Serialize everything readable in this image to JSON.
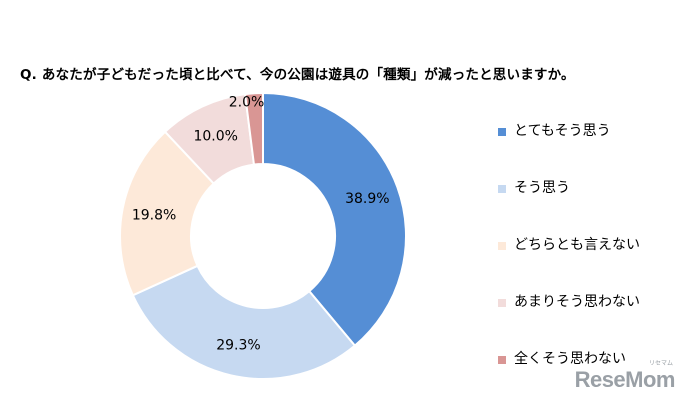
{
  "question": "Q. あなたが子どもだった頃と比べて、今の公園は遊具の「種類」が減ったと思いますか。",
  "chart_data": {
    "type": "pie",
    "variant": "donut",
    "categories": [
      "とてもそう思う",
      "そう思う",
      "どちらとも言えない",
      "あまりそう思わない",
      "全くそう思わない"
    ],
    "values": [
      38.9,
      29.3,
      19.8,
      10.0,
      2.0
    ],
    "value_labels": [
      "38.9%",
      "29.3%",
      "19.8%",
      "10.0%",
      "2.0%"
    ],
    "colors": [
      "#558ed5",
      "#c6d9f1",
      "#fde9d9",
      "#f2dcdb",
      "#d99694"
    ],
    "start": "12 o'clock",
    "direction": "clockwise",
    "legend_position": "right"
  },
  "logo": {
    "text": "ReseMom",
    "subtext": "リセマム"
  }
}
